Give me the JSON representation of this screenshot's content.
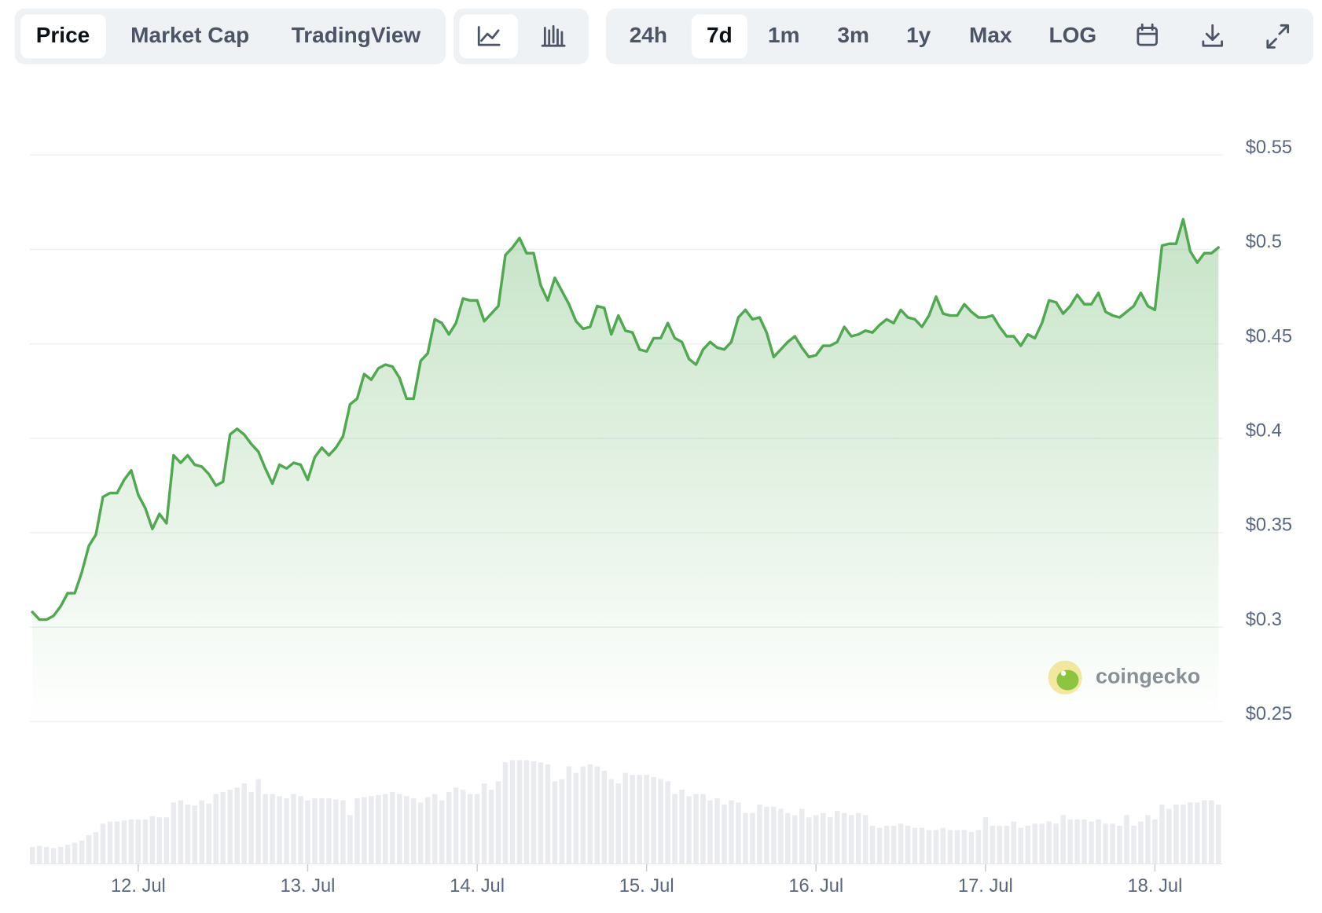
{
  "toolbar": {
    "views": [
      "Price",
      "Market Cap",
      "TradingView"
    ],
    "ranges": [
      "24h",
      "7d",
      "1m",
      "3m",
      "1y",
      "Max",
      "LOG"
    ]
  },
  "chart_data": {
    "type": "area",
    "color": "#4ea94f",
    "grid": true,
    "watermark": "coingecko",
    "x": [
      -15,
      -14,
      -13,
      -12,
      -11,
      -10,
      -9,
      -8,
      -7,
      -6,
      -5,
      -4,
      -3,
      -2,
      -1,
      0,
      1,
      2,
      3,
      4,
      5,
      6,
      7,
      8,
      9,
      10,
      11,
      12,
      13,
      14,
      15,
      16,
      17,
      18,
      19,
      20,
      21,
      22,
      23,
      24,
      25,
      26,
      27,
      28,
      29,
      30,
      31,
      32,
      33,
      34,
      35,
      36,
      37,
      38,
      39,
      40,
      41,
      42,
      43,
      44,
      45,
      46,
      47,
      48,
      49,
      50,
      51,
      52,
      53,
      54,
      55,
      56,
      57,
      58,
      59,
      60,
      61,
      62,
      63,
      64,
      65,
      66,
      67,
      68,
      69,
      70,
      71,
      72,
      73,
      74,
      75,
      76,
      77,
      78,
      79,
      80,
      81,
      82,
      83,
      84,
      85,
      86,
      87,
      88,
      89,
      90,
      91,
      92,
      93,
      94,
      95,
      96,
      97,
      98,
      99,
      100,
      101,
      102,
      103,
      104,
      105,
      106,
      107,
      108,
      109,
      110,
      111,
      112,
      113,
      114,
      115,
      116,
      117,
      118,
      119,
      120,
      121,
      122,
      123,
      124,
      125,
      126,
      127,
      128,
      129,
      130,
      131,
      132,
      133,
      134,
      135,
      136,
      137,
      138,
      139,
      140,
      141,
      142,
      143,
      144,
      145,
      146,
      147,
      148,
      149,
      150,
      151,
      152,
      153
    ],
    "values": [
      0.308,
      0.304,
      0.304,
      0.306,
      0.311,
      0.318,
      0.318,
      0.329,
      0.343,
      0.349,
      0.369,
      0.371,
      0.371,
      0.378,
      0.383,
      0.37,
      0.363,
      0.352,
      0.36,
      0.355,
      0.391,
      0.387,
      0.391,
      0.386,
      0.385,
      0.381,
      0.375,
      0.377,
      0.402,
      0.405,
      0.402,
      0.397,
      0.393,
      0.384,
      0.376,
      0.386,
      0.384,
      0.387,
      0.386,
      0.378,
      0.39,
      0.395,
      0.391,
      0.395,
      0.401,
      0.418,
      0.421,
      0.434,
      0.431,
      0.437,
      0.439,
      0.438,
      0.432,
      0.421,
      0.421,
      0.441,
      0.445,
      0.463,
      0.461,
      0.455,
      0.461,
      0.474,
      0.473,
      0.473,
      0.462,
      0.466,
      0.47,
      0.497,
      0.501,
      0.506,
      0.498,
      0.498,
      0.481,
      0.473,
      0.485,
      0.478,
      0.471,
      0.462,
      0.458,
      0.459,
      0.47,
      0.469,
      0.455,
      0.465,
      0.457,
      0.456,
      0.447,
      0.446,
      0.453,
      0.453,
      0.461,
      0.453,
      0.451,
      0.442,
      0.439,
      0.447,
      0.451,
      0.448,
      0.447,
      0.451,
      0.464,
      0.468,
      0.463,
      0.464,
      0.456,
      0.443,
      0.447,
      0.451,
      0.454,
      0.448,
      0.443,
      0.444,
      0.449,
      0.449,
      0.451,
      0.459,
      0.454,
      0.455,
      0.457,
      0.456,
      0.46,
      0.463,
      0.461,
      0.468,
      0.464,
      0.463,
      0.459,
      0.465,
      0.475,
      0.466,
      0.465,
      0.465,
      0.471,
      0.467,
      0.464,
      0.464,
      0.465,
      0.459,
      0.454,
      0.454,
      0.449,
      0.455,
      0.453,
      0.461,
      0.473,
      0.472,
      0.466,
      0.47,
      0.476,
      0.471,
      0.471,
      0.477,
      0.467,
      0.465,
      0.464,
      0.467,
      0.47,
      0.477,
      0.47,
      0.468,
      0.502,
      0.503,
      0.503,
      0.516,
      0.499,
      0.493,
      0.498,
      0.498,
      0.501
    ],
    "volume": [
      16,
      17,
      16,
      15,
      16,
      18,
      20,
      22,
      27,
      30,
      38,
      40,
      40,
      41,
      42,
      42,
      42,
      45,
      44,
      44,
      58,
      60,
      56,
      55,
      60,
      57,
      66,
      68,
      70,
      72,
      76,
      68,
      80,
      66,
      66,
      64,
      62,
      66,
      64,
      60,
      62,
      62,
      62,
      61,
      60,
      46,
      62,
      63,
      64,
      65,
      66,
      68,
      66,
      64,
      62,
      58,
      63,
      66,
      60,
      68,
      72,
      70,
      66,
      66,
      76,
      70,
      78,
      96,
      98,
      98,
      98,
      97,
      96,
      94,
      78,
      80,
      92,
      86,
      92,
      94,
      92,
      88,
      80,
      76,
      86,
      84,
      84,
      84,
      82,
      80,
      78,
      66,
      70,
      64,
      66,
      66,
      60,
      62,
      56,
      60,
      58,
      48,
      48,
      56,
      54,
      54,
      52,
      48,
      46,
      52,
      44,
      46,
      48,
      44,
      50,
      48,
      46,
      48,
      46,
      36,
      34,
      36,
      36,
      38,
      36,
      34,
      34,
      32,
      32,
      34,
      32,
      32,
      32,
      30,
      32,
      44,
      36,
      36,
      36,
      40,
      34,
      36,
      38,
      38,
      40,
      38,
      46,
      42,
      42,
      42,
      40,
      42,
      38,
      38,
      36,
      46,
      36,
      40,
      46,
      42,
      56,
      52,
      56,
      56,
      58,
      58,
      60,
      60,
      56
    ],
    "volume_lim": [
      0,
      100
    ],
    "xlim": [
      -15,
      153
    ],
    "xticks": [
      {
        "value": 0,
        "label": "12. Jul"
      },
      {
        "value": 24,
        "label": "13. Jul"
      },
      {
        "value": 48,
        "label": "14. Jul"
      },
      {
        "value": 72,
        "label": "15. Jul"
      },
      {
        "value": 96,
        "label": "16. Jul"
      },
      {
        "value": 120,
        "label": "17. Jul"
      },
      {
        "value": 144,
        "label": "18. Jul"
      }
    ],
    "ylim": [
      0.25,
      0.55
    ],
    "yticks": [
      {
        "value": 0.25,
        "label": "$0.25"
      },
      {
        "value": 0.3,
        "label": "$0.3"
      },
      {
        "value": 0.35,
        "label": "$0.35"
      },
      {
        "value": 0.4,
        "label": "$0.4"
      },
      {
        "value": 0.45,
        "label": "$0.45"
      },
      {
        "value": 0.5,
        "label": "$0.5"
      },
      {
        "value": 0.55,
        "label": "$0.55"
      }
    ]
  }
}
